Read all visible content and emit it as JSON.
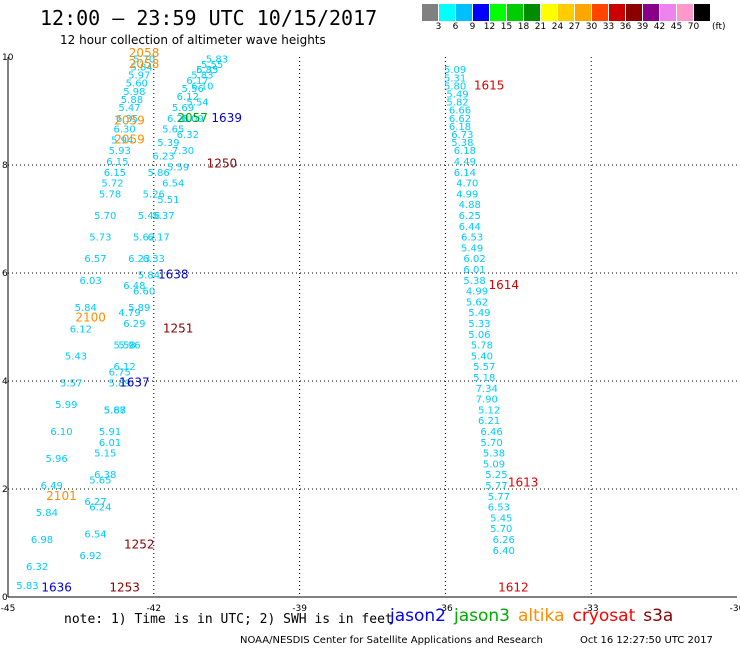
{
  "header": {
    "title": "12:00 – 23:59 UTC 10/15/2017",
    "subtitle": "12 hour collection of altimeter wave heights"
  },
  "colorbar": {
    "unit": "(ft)",
    "colors": [
      "#808080",
      "#00ffff",
      "#00bfff",
      "#0000ff",
      "#00ff00",
      "#00cc00",
      "#008b00",
      "#ffff00",
      "#ffcc00",
      "#ffa500",
      "#ff4500",
      "#cc0000",
      "#8b0000",
      "#8b008b",
      "#ee82ee",
      "#ff99cc",
      "#000000"
    ],
    "labels": [
      "3",
      "6",
      "9",
      "12",
      "15",
      "18",
      "21",
      "24",
      "27",
      "30",
      "33",
      "36",
      "39",
      "42",
      "45",
      "70"
    ]
  },
  "footer": {
    "note": "note: 1) Time is in UTC; 2) SWH is in feet",
    "credit": "NOAA/NESDIS Center for Satellite Applications and Research",
    "timestamp": "Oct 16 12:27:50 UTC 2017"
  },
  "legend": [
    {
      "name": "jason2",
      "color": "#0000ff"
    },
    {
      "name": "jason3",
      "color": "#00aa00"
    },
    {
      "name": "altika",
      "color": "#ff8c00"
    },
    {
      "name": "cryosat",
      "color": "#ff0000"
    },
    {
      "name": "s3a",
      "color": "#8b0000"
    }
  ],
  "chart_data": {
    "type": "scatter",
    "xlim": [
      -45,
      -30
    ],
    "ylim": [
      0,
      10
    ],
    "xticks": [
      "-45",
      "-42",
      "-39",
      "-36",
      "-33",
      "-30"
    ],
    "yticks": [
      "0",
      "2",
      "4",
      "6",
      "8",
      "10"
    ],
    "grid": "dotted",
    "tracks": [
      {
        "name": "track-a",
        "color": "#00ccff",
        "x": [
          -44.6,
          -44.4,
          -44.3,
          -44.2,
          -44.1,
          -44.0,
          -43.9,
          -43.8,
          -43.7,
          -43.6,
          -43.5,
          -43.4,
          -43.3,
          -43.2,
          -43.1,
          -43.0,
          -42.9,
          -42.85,
          -42.8,
          -42.75,
          -42.7,
          -42.65,
          -42.6,
          -42.55,
          -42.5,
          -42.45,
          -42.4,
          -42.35,
          -42.3,
          -42.25,
          -42.2
        ],
        "y": [
          0.15,
          0.5,
          1.0,
          1.5,
          2.0,
          2.5,
          3.0,
          3.5,
          3.9,
          4.4,
          4.9,
          5.3,
          5.8,
          6.2,
          6.6,
          7.0,
          7.4,
          7.6,
          7.8,
          8.0,
          8.2,
          8.4,
          8.6,
          8.8,
          9.0,
          9.15,
          9.3,
          9.45,
          9.6,
          9.75,
          9.9
        ],
        "labels": [
          "5.83",
          "6.32",
          "6.98",
          "5.84",
          "6.49",
          "5.96",
          "6.10",
          "5.99",
          "5.57",
          "5.43",
          "6.12",
          "5.84",
          "6.03",
          "6.57",
          "5.73",
          "5.70",
          "5.78",
          "5.72",
          "6.15",
          "6.15",
          "5.93",
          "5.94",
          "6.30",
          "6.35",
          "5.47",
          "5.88",
          "5.98",
          "5.60",
          "5.97",
          "5.84",
          "5.70"
        ]
      },
      {
        "name": "track-b",
        "color": "#00ccff",
        "x": [
          -43.3,
          -43.2,
          -43.1,
          -43.0,
          -42.9,
          -42.8,
          -42.7,
          -42.6,
          -42.5,
          -42.4,
          -42.3,
          -42.2,
          -42.1,
          -42.0,
          -41.9,
          -41.8,
          -41.7,
          -41.6,
          -41.5,
          -41.4,
          -41.3,
          -41.2,
          -41.1,
          -41.0,
          -40.9,
          -40.8,
          -40.7
        ],
        "y": [
          0.7,
          1.1,
          1.6,
          2.2,
          2.8,
          3.4,
          4.1,
          4.6,
          5.2,
          5.7,
          6.2,
          6.6,
          7.0,
          7.4,
          7.8,
          8.1,
          8.35,
          8.6,
          8.8,
          9.0,
          9.2,
          9.35,
          9.5,
          9.6,
          9.7,
          9.8,
          9.9
        ],
        "labels": [
          "6.92",
          "6.54",
          "6.24",
          "6.38",
          "6.01",
          "5.87",
          "6.75",
          "5.58",
          "4.79",
          "6.48",
          "6.23",
          "5.62",
          "5.46",
          "5.26",
          "5.86",
          "6.23",
          "5.39",
          "5.65",
          "6.28",
          "5.69",
          "6.12",
          "5.56",
          "6.17",
          "5.83",
          "6.35",
          "5.55",
          "5.83"
        ]
      },
      {
        "name": "track-c",
        "color": "#00ccff",
        "x": [
          -43.2,
          -43.1,
          -43.0,
          -42.9,
          -42.8,
          -42.7,
          -42.6,
          -42.5,
          -42.4,
          -42.3,
          -42.2,
          -42.1,
          -42.0,
          -41.9,
          -41.8,
          -41.7,
          -41.6,
          -41.5,
          -41.4,
          -41.3,
          -41.2,
          -41.1,
          -41.0,
          -40.9
        ],
        "y": [
          1.7,
          2.1,
          2.6,
          3.0,
          3.4,
          3.9,
          4.2,
          4.6,
          5.0,
          5.3,
          5.6,
          5.9,
          6.2,
          6.6,
          7.0,
          7.3,
          7.6,
          7.9,
          8.2,
          8.5,
          8.8,
          9.1,
          9.4,
          9.7
        ],
        "labels": [
          "6.27",
          "5.65",
          "5.15",
          "5.91",
          "5.68",
          "5.89",
          "6.12",
          "5.96",
          "6.29",
          "5.89",
          "6.60",
          "5.84",
          "6.33",
          "6.17",
          "5.37",
          "5.51",
          "6.54",
          "5.59",
          "7.30",
          "6.32",
          "6.09",
          "5.54",
          "6.10",
          "5.83"
        ]
      },
      {
        "name": "track-d",
        "color": "#00ccff",
        "x": [
          -35.8,
          -35.8,
          -35.8,
          -35.75,
          -35.75,
          -35.7,
          -35.7,
          -35.7,
          -35.65,
          -35.65,
          -35.6,
          -35.6,
          -35.6,
          -35.55,
          -35.55,
          -35.5,
          -35.5,
          -35.5,
          -35.45,
          -35.45,
          -35.4,
          -35.4,
          -35.4,
          -35.35,
          -35.35,
          -35.3,
          -35.3,
          -35.3,
          -35.25,
          -35.25,
          -35.2
        ],
        "y": [
          9.7,
          9.55,
          9.4,
          9.25,
          9.1,
          8.95,
          8.8,
          8.65,
          8.5,
          8.35,
          8.2,
          8.0,
          7.8,
          7.6,
          7.4,
          7.2,
          7.0,
          6.8,
          6.6,
          6.4,
          6.2,
          6.0,
          5.8,
          5.6,
          5.4,
          5.2,
          5.0,
          4.8,
          4.6,
          4.4,
          4.2
        ],
        "labels": [
          "5.09",
          "5.31",
          "5.80",
          "5.49",
          "5.82",
          "6.66",
          "6.62",
          "6.18",
          "6.73",
          "5.38",
          "6.18",
          "4.49",
          "6.14",
          "4.70",
          "4.99",
          "4.88",
          "6.25",
          "6.44",
          "6.53",
          "5.49",
          "6.02",
          "6.01",
          "5.38",
          "4.99",
          "5.62",
          "5.49",
          "5.33",
          "5.06",
          "5.78",
          "5.40",
          "5.57"
        ]
      },
      {
        "name": "track-e",
        "color": "#00ccff",
        "x": [
          -35.2,
          -35.15,
          -35.15,
          -35.1,
          -35.1,
          -35.05,
          -35.05,
          -35.0,
          -35.0,
          -34.95,
          -34.95,
          -34.9,
          -34.9,
          -34.85,
          -34.85,
          -34.8,
          -34.8
        ],
        "y": [
          4.0,
          3.8,
          3.6,
          3.4,
          3.2,
          3.0,
          2.8,
          2.6,
          2.4,
          2.2,
          2.0,
          1.8,
          1.6,
          1.4,
          1.2,
          1.0,
          0.8
        ],
        "labels": [
          "5.18",
          "7.34",
          "7.90",
          "5.12",
          "6.21",
          "6.46",
          "5.70",
          "5.38",
          "5.09",
          "5.25",
          "5.77",
          "5.77",
          "6.53",
          "5.45",
          "5.70",
          "6.26",
          "6.40"
        ]
      }
    ],
    "pass_times": [
      {
        "label": "1636",
        "x": -44.0,
        "y": 0.1,
        "color": "#0000cc"
      },
      {
        "label": "1637",
        "x": -42.4,
        "y": 3.9,
        "color": "#0000cc"
      },
      {
        "label": "1638",
        "x": -41.6,
        "y": 5.9,
        "color": "#0000cc"
      },
      {
        "label": "1639",
        "x": -40.5,
        "y": 8.8,
        "color": "#0000cc"
      },
      {
        "label": "2101",
        "x": -43.9,
        "y": 1.8,
        "color": "#ff8c00"
      },
      {
        "label": "2100",
        "x": -43.3,
        "y": 5.1,
        "color": "#ff8c00"
      },
      {
        "label": "2059",
        "x": -42.5,
        "y": 8.4,
        "color": "#ff8c00"
      },
      {
        "label": "2059",
        "x": -42.5,
        "y": 8.75,
        "color": "#ff8c00"
      },
      {
        "label": "2058",
        "x": -42.2,
        "y": 10.0,
        "color": "#ff8c00"
      },
      {
        "label": "2058",
        "x": -42.2,
        "y": 9.8,
        "color": "#ff8c00"
      },
      {
        "label": "2057",
        "x": -41.2,
        "y": 8.8,
        "color": "#00aa00"
      },
      {
        "label": "1615",
        "x": -35.1,
        "y": 9.4,
        "color": "#dd0000"
      },
      {
        "label": "1614",
        "x": -34.8,
        "y": 5.7,
        "color": "#dd0000"
      },
      {
        "label": "1613",
        "x": -34.4,
        "y": 2.05,
        "color": "#dd0000"
      },
      {
        "label": "1612",
        "x": -34.6,
        "y": 0.1,
        "color": "#dd0000"
      },
      {
        "label": "1250",
        "x": -40.6,
        "y": 7.95,
        "color": "#8b0000"
      },
      {
        "label": "1251",
        "x": -41.5,
        "y": 4.9,
        "color": "#8b0000"
      },
      {
        "label": "1252",
        "x": -42.3,
        "y": 0.9,
        "color": "#8b0000"
      },
      {
        "label": "1253",
        "x": -42.6,
        "y": 0.1,
        "color": "#8b0000"
      }
    ]
  }
}
